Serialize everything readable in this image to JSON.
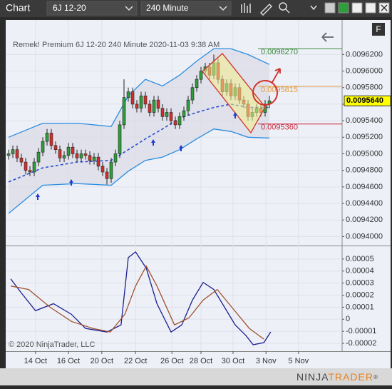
{
  "toolbar": {
    "title": "Chart",
    "instrument": "6J 12-20",
    "interval": "240 Minute",
    "panel_button": "F"
  },
  "footer": {
    "copyright": "© 2020 NinjaTrader, LLC",
    "logo_a": "NINJA",
    "logo_b": "TRADER",
    "logo_mark": "®"
  },
  "chart_data": [
    {
      "type": "candlestick",
      "title": "Remek!  Premium  6J 12-20  240 Minute  2020-11-03 9:38 AM",
      "x": [
        0,
        1,
        2,
        3,
        4,
        5,
        6,
        7,
        8,
        9,
        10,
        11,
        12,
        13,
        14,
        15,
        16,
        17,
        18,
        19,
        20,
        21,
        22,
        23,
        24,
        25,
        26,
        27,
        28,
        29,
        30,
        31,
        32,
        33,
        34,
        35,
        36,
        37,
        38,
        39,
        40,
        41,
        42,
        43,
        44,
        45,
        46,
        47,
        48,
        49,
        50,
        51,
        52,
        53,
        54,
        55,
        56,
        57,
        58,
        59,
        60,
        61
      ],
      "open": [
        0.009498,
        0.0095,
        0.009505,
        0.009495,
        0.00949,
        0.00948,
        0.009478,
        0.00949,
        0.009502,
        0.009515,
        0.009525,
        0.00951,
        0.009505,
        0.009495,
        0.009498,
        0.009508,
        0.0095,
        0.009495,
        0.0095,
        0.009498,
        0.009492,
        0.009496,
        0.009485,
        0.009478,
        0.00947,
        0.00949,
        0.0095,
        0.009535,
        0.009568,
        0.009575,
        0.00956,
        0.009555,
        0.00957,
        0.00956,
        0.00955,
        0.009565,
        0.009555,
        0.009545,
        0.00955,
        0.00954,
        0.009535,
        0.009545,
        0.009552,
        0.009565,
        0.00958,
        0.00959,
        0.0096,
        0.009605,
        0.009595,
        0.00961,
        0.00959,
        0.009575,
        0.009585,
        0.00957,
        0.00958,
        0.009565,
        0.00956,
        0.009545,
        0.00955,
        0.009555,
        0.00955,
        0.00956
      ],
      "high": [
        0.009505,
        0.00951,
        0.00951,
        0.0095,
        0.009495,
        0.009485,
        0.009495,
        0.009507,
        0.00952,
        0.00953,
        0.00953,
        0.009515,
        0.00951,
        0.009503,
        0.009513,
        0.009513,
        0.009505,
        0.009505,
        0.009505,
        0.009503,
        0.009501,
        0.009501,
        0.00949,
        0.009483,
        0.009495,
        0.009505,
        0.00954,
        0.00959,
        0.00958,
        0.00958,
        0.009565,
        0.009575,
        0.009575,
        0.009565,
        0.00957,
        0.00957,
        0.00956,
        0.009555,
        0.009555,
        0.009545,
        0.00955,
        0.009557,
        0.00957,
        0.009585,
        0.009595,
        0.009605,
        0.00961,
        0.00961,
        0.00962,
        0.009615,
        0.009595,
        0.00959,
        0.00959,
        0.009585,
        0.009585,
        0.00957,
        0.009565,
        0.009555,
        0.00956,
        0.00956,
        0.009565,
        0.00957
      ],
      "low": [
        0.009493,
        0.009495,
        0.00949,
        0.009485,
        0.009475,
        0.009473,
        0.009473,
        0.009485,
        0.009497,
        0.00951,
        0.009505,
        0.0095,
        0.00949,
        0.00949,
        0.009493,
        0.009495,
        0.00949,
        0.00949,
        0.009493,
        0.009487,
        0.009487,
        0.00948,
        0.009473,
        0.009463,
        0.009465,
        0.009485,
        0.009495,
        0.00953,
        0.009563,
        0.009555,
        0.00955,
        0.00955,
        0.009555,
        0.009545,
        0.009545,
        0.00955,
        0.00954,
        0.00954,
        0.009535,
        0.00953,
        0.00953,
        0.00954,
        0.009547,
        0.00956,
        0.009575,
        0.009585,
        0.009595,
        0.00959,
        0.00959,
        0.009585,
        0.00957,
        0.00957,
        0.009565,
        0.009565,
        0.00956,
        0.009555,
        0.00954,
        0.00954,
        0.009545,
        0.009545,
        0.009545,
        0.009555
      ],
      "close": [
        0.0095,
        0.009505,
        0.009495,
        0.00949,
        0.00948,
        0.009478,
        0.00949,
        0.009502,
        0.009515,
        0.009525,
        0.00951,
        0.009505,
        0.009495,
        0.009498,
        0.009508,
        0.0095,
        0.009495,
        0.0095,
        0.009498,
        0.009492,
        0.009496,
        0.009485,
        0.009478,
        0.00947,
        0.00949,
        0.0095,
        0.009535,
        0.009568,
        0.009575,
        0.00956,
        0.009555,
        0.00957,
        0.00956,
        0.00955,
        0.009565,
        0.009555,
        0.009545,
        0.00955,
        0.00954,
        0.009535,
        0.009545,
        0.009552,
        0.009565,
        0.00958,
        0.00959,
        0.0096,
        0.009605,
        0.009595,
        0.00961,
        0.00959,
        0.009575,
        0.009585,
        0.00957,
        0.00958,
        0.009565,
        0.00956,
        0.009545,
        0.00955,
        0.009555,
        0.00955,
        0.00956,
        0.009564
      ],
      "up_color": "#2e9e3a",
      "down_color": "#d0312d",
      "band_x": [
        0,
        8,
        16,
        24,
        28,
        32,
        36,
        40,
        44,
        48,
        52,
        56,
        61
      ],
      "upper_band": [
        0.00952,
        0.009537,
        0.009537,
        0.009533,
        0.00957,
        0.00959,
        0.009582,
        0.009595,
        0.009612,
        0.009627,
        0.009627,
        0.00962,
        0.009608
      ],
      "lower_band": [
        0.009428,
        0.009462,
        0.009464,
        0.009462,
        0.009479,
        0.009492,
        0.009496,
        0.009505,
        0.009518,
        0.00953,
        0.009527,
        0.00952,
        0.009519
      ],
      "moving_average": [
        0.009466,
        0.009483,
        0.00949,
        0.009492,
        0.009505,
        0.009518,
        0.00953,
        0.009543,
        0.00955,
        0.009556,
        0.00956,
        0.009556,
        0.009556
      ],
      "band_color": "#2a8de0",
      "ma_color": "#2a4fd0",
      "levels": [
        {
          "value": 0.009627,
          "label": "0.0096270",
          "color": "#3a8a3a"
        },
        {
          "value": 0.0095815,
          "label": "0.0095815",
          "color": "#e39a3b"
        },
        {
          "value": 0.009536,
          "label": "0.0095360",
          "color": "#c8283c"
        }
      ],
      "last_price": {
        "value": 0.009564,
        "label": "0.0095640"
      },
      "xlim": [
        -0.67,
        78
      ],
      "ylim": [
        0.00939,
        0.00966
      ],
      "yticks": [
        {
          "value": 0.00962,
          "label": "0.0096200"
        },
        {
          "value": 0.0096,
          "label": "0.0096000"
        },
        {
          "value": 0.00958,
          "label": "0.0095800"
        },
        {
          "value": 0.00956,
          "label": "0.0095600"
        },
        {
          "value": 0.00954,
          "label": "0.0095400"
        },
        {
          "value": 0.00952,
          "label": "0.0095200"
        },
        {
          "value": 0.0095,
          "label": "0.0095000"
        },
        {
          "value": 0.00948,
          "label": "0.0094800"
        },
        {
          "value": 0.00946,
          "label": "0.0094600"
        },
        {
          "value": 0.00944,
          "label": "0.0094400"
        },
        {
          "value": 0.00942,
          "label": "0.0094200"
        },
        {
          "value": 0.0094,
          "label": "0.0094000"
        }
      ],
      "grid": true
    },
    {
      "type": "line",
      "series": [
        {
          "color": "#1a1f8c",
          "x": [
            0.5,
            3,
            6.3,
            10.5,
            14.7,
            18,
            23,
            26.3,
            28,
            29.7,
            32.2,
            34.7,
            38,
            40.5,
            43,
            45.5,
            48,
            50.5,
            53,
            55.5,
            57.2,
            59.7,
            61.3
          ],
          "values": [
            3.35e-05,
            2.18e-05,
            7.1e-06,
            1.29e-05,
            4.1e-06,
            -7.6e-06,
            -1.06e-05,
            -4.7e-06,
            5.12e-05,
            5.59e-05,
            4.24e-05,
            1.29e-05,
            -1.06e-05,
            -4.7e-06,
            1.59e-05,
            3.06e-05,
            2.47e-05,
            1e-05,
            -4.7e-06,
            -1.35e-05,
            -2.12e-05,
            -1.94e-05,
            -1.06e-05
          ]
        },
        {
          "color": "#a0522d",
          "x": [
            0.5,
            4.7,
            9.7,
            14.7,
            19.7,
            23.8,
            27.2,
            29.7,
            32.2,
            34.7,
            38.8,
            42.2,
            45.5,
            48.8,
            52.2,
            56.3,
            59.7
          ],
          "values": [
            2.76e-05,
            2.47e-05,
            1e-05,
            -1.8e-06,
            -7.6e-06,
            -1.06e-05,
            4.1e-06,
            2.76e-05,
            4.41e-05,
            2.76e-05,
            -4.7e-06,
            1.2e-06,
            1.59e-05,
            2.47e-05,
            1e-05,
            -7.6e-06,
            -1.65e-05
          ]
        }
      ],
      "xlim": [
        -0.67,
        78
      ],
      "ylim": [
        -2.65e-05,
        6e-05
      ],
      "yticks": [
        5e-05,
        4e-05,
        3e-05,
        2e-05,
        1e-05,
        0,
        -1e-05,
        -2e-05
      ],
      "xticks": [
        {
          "value": 6.3,
          "label": "14 Oct"
        },
        {
          "value": 14,
          "label": "16 Oct"
        },
        {
          "value": 21.8,
          "label": "20 Oct"
        },
        {
          "value": 29.7,
          "label": "22 Oct"
        },
        {
          "value": 38.2,
          "label": "26 Oct"
        },
        {
          "value": 45,
          "label": "28 Oct"
        },
        {
          "value": 52.5,
          "label": "30 Oct"
        },
        {
          "value": 60.2,
          "label": "3 Nov"
        },
        {
          "value": 67.8,
          "label": "5 Nov"
        }
      ],
      "grid": true
    }
  ]
}
